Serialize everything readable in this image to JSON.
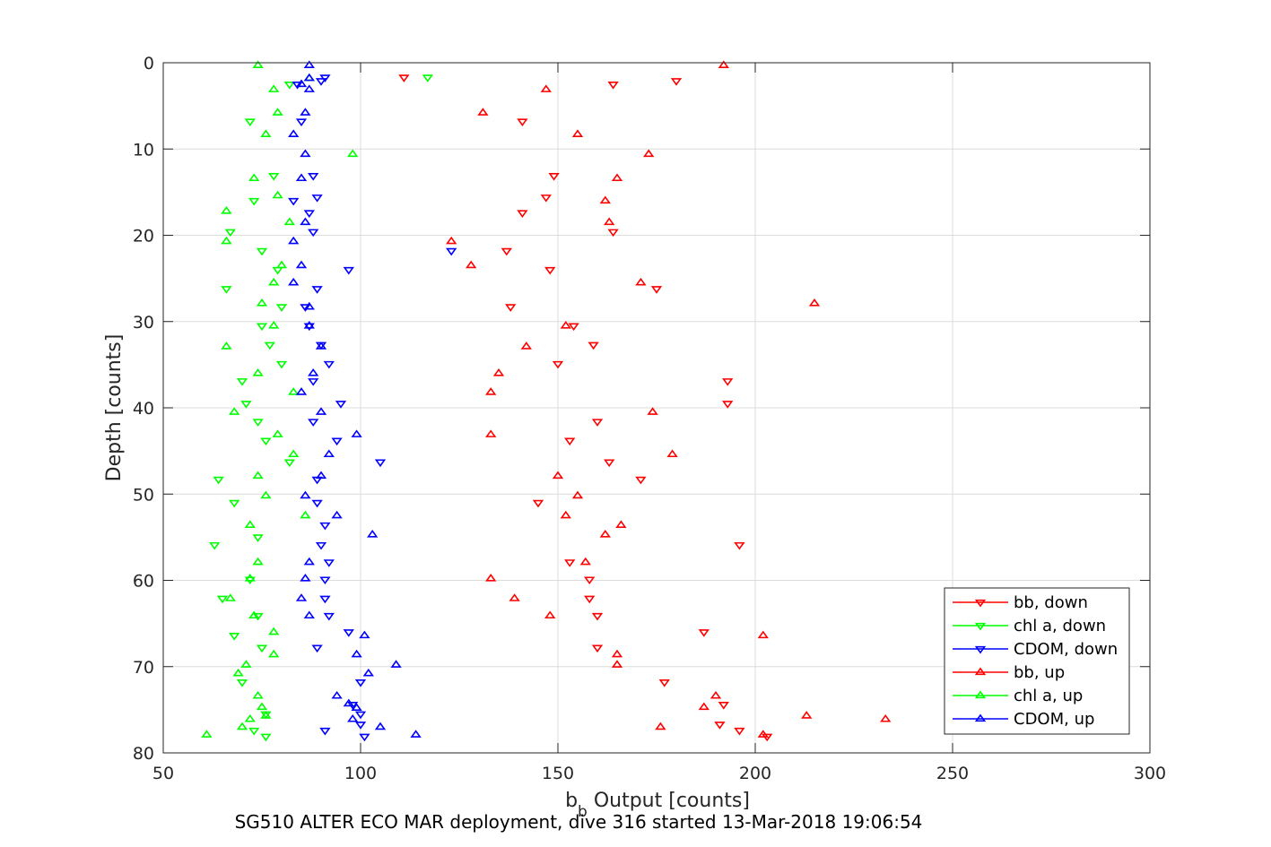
{
  "chart_data": {
    "type": "scatter",
    "caption": "SG510 ALTER ECO MAR deployment, dive 316 started 13-Mar-2018 19:06:54",
    "xlabel_main": "b",
    "xlabel_sub": "b",
    "xlabel_rest": " Output [counts]",
    "ylabel": "Depth [counts]",
    "xlim": [
      50,
      300
    ],
    "ylim": [
      0,
      80
    ],
    "y_reversed": true,
    "grid": true,
    "xticks": [
      "50",
      "100",
      "150",
      "200",
      "250",
      "300"
    ],
    "yticks": [
      "0",
      "10",
      "20",
      "30",
      "40",
      "50",
      "60",
      "70",
      "80"
    ],
    "legend_position": "bottom-right",
    "series": [
      {
        "name": "bb, down",
        "color": "#ff0000",
        "marker": "triangle-down",
        "points": [
          [
            111,
            1.7
          ],
          [
            164,
            2.5
          ],
          [
            180,
            2.1
          ],
          [
            141,
            6.8
          ],
          [
            149,
            13.1
          ],
          [
            147,
            15.6
          ],
          [
            141,
            17.4
          ],
          [
            164,
            19.6
          ],
          [
            137,
            21.8
          ],
          [
            148,
            24.0
          ],
          [
            175,
            26.2
          ],
          [
            138,
            28.3
          ],
          [
            154,
            30.5
          ],
          [
            159,
            32.7
          ],
          [
            150,
            34.9
          ],
          [
            193,
            36.9
          ],
          [
            193,
            39.5
          ],
          [
            160,
            41.6
          ],
          [
            153,
            43.8
          ],
          [
            163,
            46.3
          ],
          [
            171,
            48.3
          ],
          [
            145,
            51.0
          ],
          [
            196,
            55.9
          ],
          [
            153,
            57.9
          ],
          [
            158,
            59.9
          ],
          [
            158,
            62.1
          ],
          [
            160,
            64.1
          ],
          [
            187,
            66.0
          ],
          [
            160,
            67.8
          ],
          [
            177,
            71.8
          ],
          [
            192,
            74.4
          ],
          [
            191,
            76.7
          ],
          [
            196,
            77.4
          ],
          [
            203,
            78.1
          ]
        ]
      },
      {
        "name": "chl a, down",
        "color": "#00ff00",
        "marker": "triangle-down",
        "points": [
          [
            117,
            1.7
          ],
          [
            82,
            2.5
          ],
          [
            72,
            6.8
          ],
          [
            78,
            13.1
          ],
          [
            73,
            16.0
          ],
          [
            67,
            19.6
          ],
          [
            75,
            21.8
          ],
          [
            79,
            24.0
          ],
          [
            66,
            26.2
          ],
          [
            80,
            28.3
          ],
          [
            75,
            30.5
          ],
          [
            77,
            32.7
          ],
          [
            80,
            34.9
          ],
          [
            70,
            36.9
          ],
          [
            71,
            39.5
          ],
          [
            74,
            41.6
          ],
          [
            76,
            43.8
          ],
          [
            82,
            46.3
          ],
          [
            64,
            48.3
          ],
          [
            68,
            51.0
          ],
          [
            74,
            55.0
          ],
          [
            63,
            55.9
          ],
          [
            72,
            59.9
          ],
          [
            65,
            62.1
          ],
          [
            74,
            64.1
          ],
          [
            68,
            66.4
          ],
          [
            75,
            67.8
          ],
          [
            70,
            71.8
          ],
          [
            76,
            75.5
          ],
          [
            73,
            77.4
          ],
          [
            76,
            78.1
          ]
        ]
      },
      {
        "name": "CDOM, down",
        "color": "#0000ff",
        "marker": "triangle-down",
        "points": [
          [
            91,
            1.7
          ],
          [
            84,
            2.5
          ],
          [
            90,
            2.1
          ],
          [
            85,
            6.8
          ],
          [
            88,
            13.1
          ],
          [
            89,
            15.6
          ],
          [
            83,
            16.0
          ],
          [
            87,
            17.4
          ],
          [
            88,
            19.6
          ],
          [
            123,
            21.8
          ],
          [
            97,
            24.0
          ],
          [
            89,
            26.2
          ],
          [
            86,
            28.3
          ],
          [
            87,
            30.5
          ],
          [
            90,
            32.7
          ],
          [
            92,
            34.9
          ],
          [
            88,
            36.9
          ],
          [
            95,
            39.5
          ],
          [
            88,
            41.6
          ],
          [
            94,
            43.8
          ],
          [
            105,
            46.3
          ],
          [
            89,
            48.3
          ],
          [
            89,
            51.0
          ],
          [
            91,
            53.6
          ],
          [
            90,
            55.9
          ],
          [
            92,
            57.9
          ],
          [
            91,
            59.9
          ],
          [
            91,
            62.1
          ],
          [
            92,
            64.1
          ],
          [
            97,
            66.0
          ],
          [
            89,
            67.8
          ],
          [
            100,
            71.8
          ],
          [
            98,
            74.4
          ],
          [
            100,
            75.5
          ],
          [
            100,
            76.7
          ],
          [
            91,
            77.4
          ],
          [
            101,
            78.1
          ]
        ]
      },
      {
        "name": "bb, up",
        "color": "#ff0000",
        "marker": "triangle-up",
        "points": [
          [
            192,
            0.3
          ],
          [
            147,
            3.1
          ],
          [
            131,
            5.8
          ],
          [
            155,
            8.3
          ],
          [
            173,
            10.6
          ],
          [
            165,
            13.4
          ],
          [
            162,
            16.0
          ],
          [
            163,
            18.5
          ],
          [
            123,
            20.7
          ],
          [
            128,
            23.5
          ],
          [
            171,
            25.5
          ],
          [
            215,
            27.9
          ],
          [
            152,
            30.5
          ],
          [
            142,
            32.9
          ],
          [
            135,
            36.0
          ],
          [
            133,
            38.2
          ],
          [
            174,
            40.5
          ],
          [
            133,
            43.1
          ],
          [
            179,
            45.4
          ],
          [
            150,
            47.9
          ],
          [
            155,
            50.2
          ],
          [
            152,
            52.5
          ],
          [
            166,
            53.6
          ],
          [
            162,
            54.7
          ],
          [
            157,
            57.9
          ],
          [
            133,
            59.8
          ],
          [
            139,
            62.1
          ],
          [
            148,
            64.1
          ],
          [
            202,
            66.4
          ],
          [
            165,
            68.6
          ],
          [
            165,
            69.8
          ],
          [
            190,
            73.4
          ],
          [
            187,
            74.7
          ],
          [
            213,
            75.7
          ],
          [
            233,
            76.1
          ],
          [
            176,
            77.0
          ],
          [
            202,
            77.9
          ]
        ]
      },
      {
        "name": "chl a, up",
        "color": "#00ff00",
        "marker": "triangle-up",
        "points": [
          [
            74,
            0.3
          ],
          [
            87,
            1.8
          ],
          [
            78,
            3.1
          ],
          [
            79,
            5.8
          ],
          [
            76,
            8.3
          ],
          [
            98,
            10.6
          ],
          [
            73,
            13.4
          ],
          [
            79,
            15.4
          ],
          [
            66,
            17.2
          ],
          [
            82,
            18.5
          ],
          [
            66,
            20.7
          ],
          [
            80,
            23.5
          ],
          [
            78,
            25.5
          ],
          [
            75,
            27.9
          ],
          [
            78,
            30.5
          ],
          [
            66,
            32.9
          ],
          [
            74,
            36.0
          ],
          [
            83,
            38.2
          ],
          [
            68,
            40.5
          ],
          [
            79,
            43.1
          ],
          [
            83,
            45.4
          ],
          [
            74,
            47.9
          ],
          [
            76,
            50.2
          ],
          [
            86,
            52.5
          ],
          [
            72,
            53.6
          ],
          [
            74,
            57.9
          ],
          [
            72,
            59.8
          ],
          [
            67,
            62.1
          ],
          [
            73,
            64.1
          ],
          [
            78,
            66.0
          ],
          [
            78,
            68.6
          ],
          [
            71,
            69.8
          ],
          [
            69,
            70.8
          ],
          [
            74,
            73.4
          ],
          [
            75,
            74.7
          ],
          [
            76,
            75.7
          ],
          [
            72,
            76.1
          ],
          [
            70,
            77.0
          ],
          [
            61,
            77.9
          ]
        ]
      },
      {
        "name": "CDOM, up",
        "color": "#0000ff",
        "marker": "triangle-up",
        "points": [
          [
            87,
            0.3
          ],
          [
            87,
            1.8
          ],
          [
            85,
            2.5
          ],
          [
            87,
            3.1
          ],
          [
            86,
            5.8
          ],
          [
            83,
            8.3
          ],
          [
            86,
            10.6
          ],
          [
            85,
            13.4
          ],
          [
            86,
            18.5
          ],
          [
            83,
            20.7
          ],
          [
            85,
            23.5
          ],
          [
            83,
            25.5
          ],
          [
            87,
            28.3
          ],
          [
            87,
            30.5
          ],
          [
            90,
            32.9
          ],
          [
            88,
            36.0
          ],
          [
            85,
            38.2
          ],
          [
            90,
            40.5
          ],
          [
            99,
            43.1
          ],
          [
            92,
            45.4
          ],
          [
            90,
            47.9
          ],
          [
            86,
            50.2
          ],
          [
            94,
            52.5
          ],
          [
            103,
            54.7
          ],
          [
            87,
            57.9
          ],
          [
            86,
            59.8
          ],
          [
            85,
            62.1
          ],
          [
            87,
            64.1
          ],
          [
            101,
            66.4
          ],
          [
            99,
            68.6
          ],
          [
            109,
            69.8
          ],
          [
            102,
            70.8
          ],
          [
            94,
            73.4
          ],
          [
            97,
            74.3
          ],
          [
            99,
            74.8
          ],
          [
            98,
            76.1
          ],
          [
            105,
            77.0
          ],
          [
            114,
            77.9
          ]
        ]
      }
    ]
  }
}
